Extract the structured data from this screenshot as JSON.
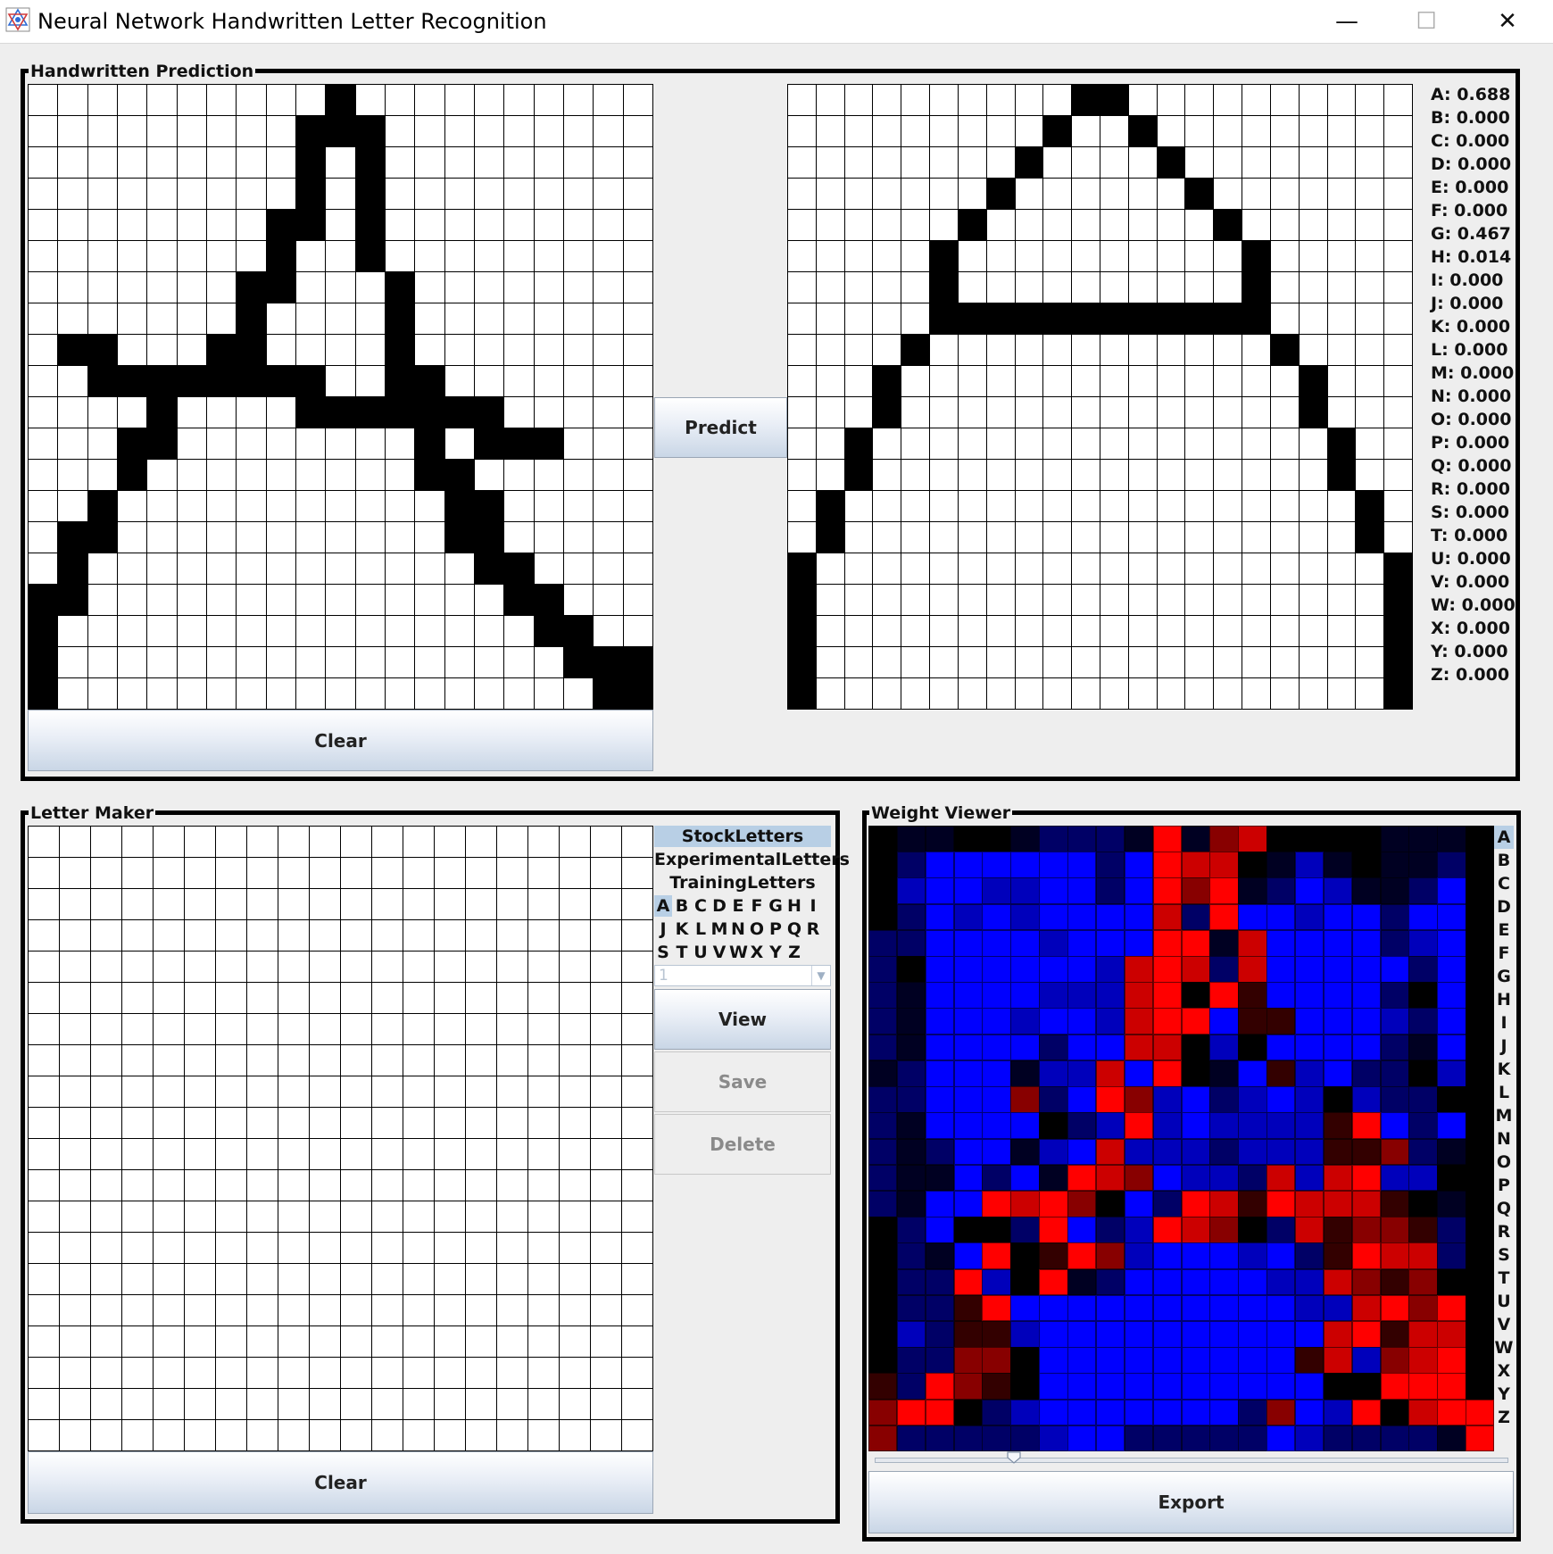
{
  "window": {
    "title": "Neural Network Handwritten Letter Recognition",
    "minimize_glyph": "—",
    "maximize_glyph": "☐",
    "close_glyph": "✕",
    "app_icon": "network-icon"
  },
  "prediction_panel": {
    "label": "Handwritten Prediction",
    "predict_label": "Predict",
    "clear_label": "Clear",
    "input_rows": [
      "000000000010000000000",
      "000000000111000000000",
      "000000000101000000000",
      "000000000101000000000",
      "000000001101000000000",
      "000000001001000000000",
      "000000011000100000000",
      "000000010000100000000",
      "011000110000100000000",
      "001111111100110000000",
      "000010000111111100000",
      "000110000000010111000",
      "000100000000011000000",
      "001000000000001100000",
      "011000000000001100000",
      "010000000000000110000",
      "110000000000000011000",
      "100000000000000001100",
      "100000000000000000111",
      "100000000000000000011"
    ],
    "output_rows": [
      "0000000000110000000000",
      "0000000001001000000000",
      "0000000010000100000000",
      "0000000100000010000000",
      "0000001000000001000000",
      "0000010000000000100000",
      "0000010000000000100000",
      "0000011111111111100000",
      "0000100000000000010000",
      "0001000000000000001000",
      "0001000000000000001000",
      "0010000000000000000100",
      "0010000000000000000100",
      "0100000000000000000010",
      "0100000000000000000010",
      "1000000000000000000001",
      "1000000000000000000001",
      "1000000000000000000001",
      "1000000000000000000001",
      "1000000000000000000001"
    ],
    "probabilities": [
      "A: 0.688",
      "B: 0.000",
      "C: 0.000",
      "D: 0.000",
      "E: 0.000",
      "F: 0.000",
      "G: 0.467",
      "H: 0.014",
      "I: 0.000",
      "J: 0.000",
      "K: 0.000",
      "L: 0.000",
      "M: 0.000",
      "N: 0.000",
      "O: 0.000",
      "P: 0.000",
      "Q: 0.000",
      "R: 0.000",
      "S: 0.000",
      "T: 0.000",
      "U: 0.000",
      "V: 0.000",
      "W: 0.000",
      "X: 0.000",
      "Y: 0.000",
      "Z: 0.000"
    ]
  },
  "letter_maker": {
    "label": "Letter Maker",
    "clear_label": "Clear",
    "sets": [
      "StockLetters",
      "ExperimentalLetters",
      "TrainingLetters"
    ],
    "selected_set": "StockLetters",
    "letters": [
      "A",
      "B",
      "C",
      "D",
      "E",
      "F",
      "G",
      "H",
      "I",
      "J",
      "K",
      "L",
      "M",
      "N",
      "O",
      "P",
      "Q",
      "R",
      "S",
      "T",
      "U",
      "V",
      "W",
      "X",
      "Y",
      "Z"
    ],
    "selected_letter": "A",
    "combo_value": "1",
    "view_label": "View",
    "save_label": "Save",
    "delete_label": "Delete"
  },
  "weight_viewer": {
    "label": "Weight Viewer",
    "export_label": "Export",
    "letters": [
      "A",
      "B",
      "C",
      "D",
      "E",
      "F",
      "G",
      "H",
      "I",
      "J",
      "K",
      "L",
      "M",
      "N",
      "O",
      "P",
      "Q",
      "R",
      "S",
      "T",
      "U",
      "V",
      "W",
      "X",
      "Y",
      "Z"
    ],
    "selected_letter": "A",
    "slider_value_fraction": 0.22,
    "palette": {
      "0": "#000000",
      "1": "#000022",
      "2": "#000066",
      "3": "#0000bb",
      "4": "#0000ff",
      "5": "#330000",
      "6": "#880000",
      "7": "#cc0000",
      "8": "#ff0000"
    },
    "rows": [
      "0110012221816700001110",
      "0244444424877013101120",
      "0344334424868124311240",
      "0243434444728443442440",
      "2244443444881744442340",
      "2044444437872744444240",
      "2144443337808544442040",
      "2144434437884554443240",
      "2144442447703044442140",
      "1244413374801453422030",
      "2244462486342343032200",
      "2144440238343333584240",
      "2124413473332333556210",
      "2114241876433273783300",
      "2144878604287587775010",
      "0240028423876027566520",
      "0214805863444342587720",
      "0228308124444433765600",
      "0225844444444443378680",
      "0325534444444444785770",
      "0226604444444445736780",
      "5286504444444444008880",
      "6880234444444264380788",
      "6222223442222243222218"
    ]
  }
}
